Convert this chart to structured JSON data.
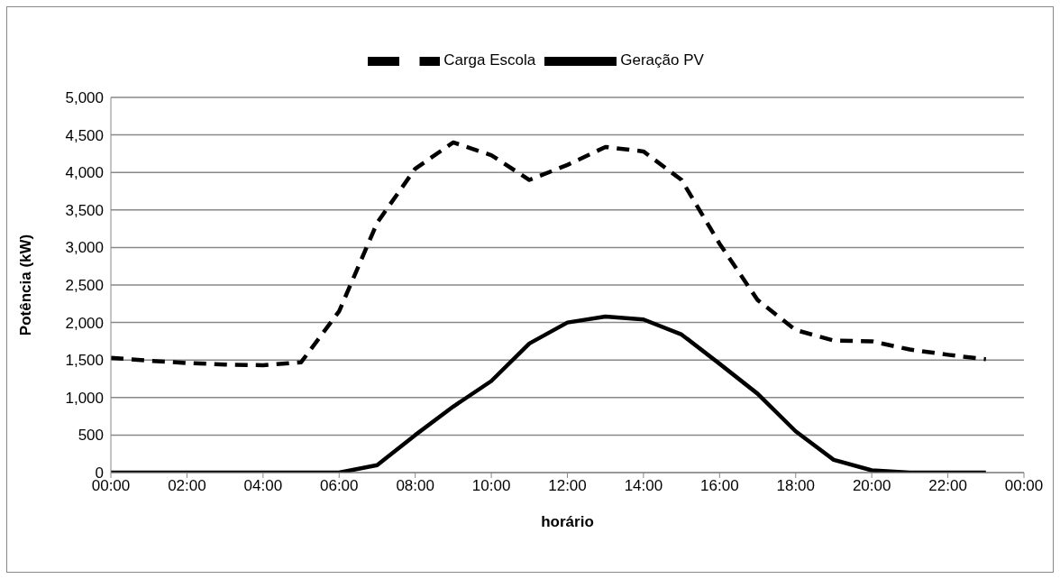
{
  "chart_data": {
    "type": "line",
    "xlabel": "horário",
    "ylabel": "Potência (kW)",
    "x": [
      0,
      1,
      2,
      3,
      4,
      5,
      6,
      7,
      8,
      9,
      10,
      11,
      12,
      13,
      14,
      15,
      16,
      17,
      18,
      19,
      20,
      21,
      22,
      23
    ],
    "series": [
      {
        "name": "Geração PV",
        "color": "#000000",
        "line_style": "solid",
        "values": [
          0,
          0,
          0,
          0,
          0,
          0,
          0,
          100,
          500,
          880,
          1220,
          1720,
          2000,
          2080,
          2040,
          1840,
          1450,
          1050,
          550,
          170,
          30,
          0,
          0,
          0
        ]
      },
      {
        "name": "Carga Escola",
        "color": "#000000",
        "line_style": "dashed",
        "values": [
          1530,
          1490,
          1460,
          1440,
          1430,
          1470,
          2150,
          3330,
          4050,
          4400,
          4230,
          3900,
          4100,
          4340,
          4280,
          3900,
          3050,
          2300,
          1900,
          1760,
          1750,
          1640,
          1570,
          1510
        ]
      }
    ],
    "xlim": [
      0,
      24
    ],
    "xticks": [
      {
        "value": 0,
        "label": "00:00"
      },
      {
        "value": 2,
        "label": "02:00"
      },
      {
        "value": 4,
        "label": "04:00"
      },
      {
        "value": 6,
        "label": "06:00"
      },
      {
        "value": 8,
        "label": "08:00"
      },
      {
        "value": 10,
        "label": "10:00"
      },
      {
        "value": 12,
        "label": "12:00"
      },
      {
        "value": 14,
        "label": "14:00"
      },
      {
        "value": 16,
        "label": "16:00"
      },
      {
        "value": 18,
        "label": "18:00"
      },
      {
        "value": 20,
        "label": "20:00"
      },
      {
        "value": 22,
        "label": "22:00"
      },
      {
        "value": 24,
        "label": "00:00"
      }
    ],
    "ylim": [
      0,
      5000
    ],
    "yticks": [
      0,
      500,
      {
        "value": 1000,
        "label": "1,000"
      },
      {
        "value": 1500,
        "label": "1,500"
      },
      {
        "value": 2000,
        "label": "2,000"
      },
      {
        "value": 2500,
        "label": "2,500"
      },
      {
        "value": 3000,
        "label": "3,000"
      },
      {
        "value": 3500,
        "label": "3,500"
      },
      {
        "value": 4000,
        "label": "4,000"
      },
      {
        "value": 4500,
        "label": "4,500"
      },
      {
        "value": 5000,
        "label": "5,000"
      }
    ],
    "grid": "y",
    "legend": "top",
    "marker": "none"
  }
}
